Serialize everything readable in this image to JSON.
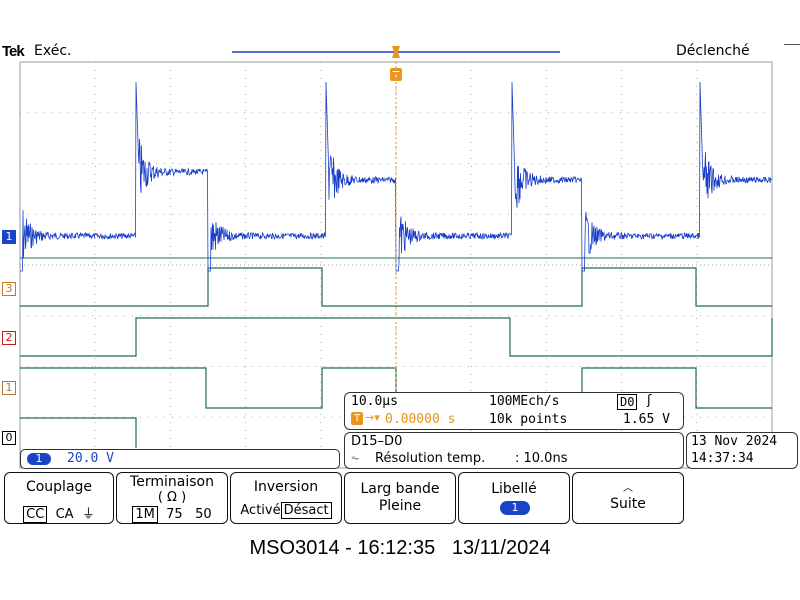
{
  "header": {
    "brand": "Tek",
    "run_state": "Exéc.",
    "trigger_status": "Déclenché"
  },
  "trigger_marker": {
    "label": "T"
  },
  "channels": [
    {
      "label": "1",
      "color": "#1a44c8"
    },
    {
      "label": "3",
      "color": "#c87a1a"
    },
    {
      "label": "2",
      "color": "#c81a1a"
    },
    {
      "label": "1",
      "color": "#b07a3a"
    },
    {
      "label": "0",
      "color": "#000000"
    }
  ],
  "scale_box": {
    "channel": "1",
    "value": "20.0 V"
  },
  "timebase": {
    "horizontal_scale": "10.0µs",
    "sample_rate": "100MEch/s",
    "trigger_source": "D0",
    "trigger_slope_icon": "rising-edge-icon",
    "trigger_position": "0.00000 s",
    "record_length": "10k points",
    "trigger_level": "1.65 V"
  },
  "bus": {
    "name": "D15–D0",
    "resolution_label": "Résolution temp.",
    "resolution_value": ": 10.0ns"
  },
  "datetime": {
    "date": "13 Nov 2024",
    "time": "14:37:34"
  },
  "menu": {
    "coupling": {
      "title": "Couplage",
      "options": [
        "CC",
        "CA",
        "⏚"
      ],
      "selected": "CC"
    },
    "termination": {
      "title": "Terminaison",
      "subtitle": "( Ω )",
      "options": [
        "1M",
        "75",
        "50"
      ],
      "selected": "1M"
    },
    "invert": {
      "title": "Inversion",
      "options": [
        "Activé",
        "Désact"
      ],
      "selected": "Désact"
    },
    "bandwidth": {
      "title": "Larg bande",
      "value": "Pleine"
    },
    "label": {
      "title": "Libellé",
      "value": "1"
    },
    "more": {
      "title": "Suite"
    }
  },
  "caption": "MSO3014 - 16:12:35   13/11/2024",
  "colors": {
    "ch1": "#1a3fc8",
    "digital": "#1f6e4e",
    "grid": "#9a9a9a",
    "orange": "#e8961e"
  }
}
